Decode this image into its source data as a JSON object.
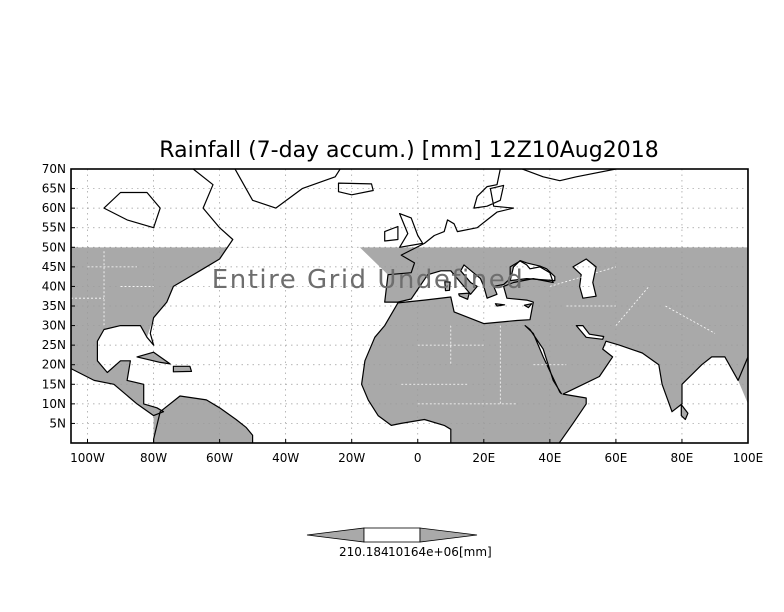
{
  "title": "Rainfall (7-day accum.) [mm] 12Z10Aug2018",
  "overlay_text": "Entire Grid Undefined",
  "map": {
    "lon_range": [
      -105,
      100
    ],
    "lat_range": [
      0,
      70
    ],
    "undefined_lat_min": 0,
    "undefined_lat_max": 50,
    "lat_ticks": [
      "70N",
      "65N",
      "60N",
      "55N",
      "50N",
      "45N",
      "40N",
      "35N",
      "30N",
      "25N",
      "20N",
      "15N",
      "10N",
      "5N"
    ],
    "lon_ticks": [
      "100W",
      "80W",
      "60W",
      "40W",
      "20W",
      "0",
      "20E",
      "40E",
      "60E",
      "80E",
      "100E"
    ],
    "grid": "dotted",
    "land_color": "#a9a9a9",
    "border_color": "#000000",
    "inner_border_color": "#ffffff"
  },
  "colorbar": {
    "labels": [
      "210.184",
      "10164e+06"
    ],
    "unit": "[mm]",
    "color": "#a9a9a9"
  }
}
